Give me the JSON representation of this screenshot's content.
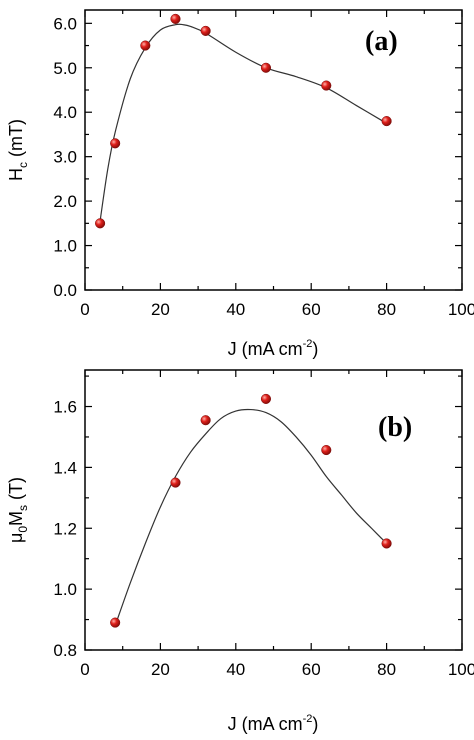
{
  "chart_data": [
    {
      "type": "scatter",
      "panel_label": "(a)",
      "xlabel": "J (mA cm",
      "xlabel_sup": "-2",
      "xlabel_close": ")",
      "ylabel": "H",
      "ylabel_sub": "c",
      "ylabel_rest": " (mT)",
      "xlim": [
        0,
        100
      ],
      "ylim": [
        0.0,
        6.3
      ],
      "xticks": [
        "0",
        "20",
        "40",
        "60",
        "80",
        "100"
      ],
      "yticks": [
        "0.0",
        "1.0",
        "2.0",
        "3.0",
        "4.0",
        "5.0",
        "6.0"
      ],
      "x": [
        4,
        8,
        16,
        24,
        32,
        48,
        64,
        80
      ],
      "y": [
        1.5,
        3.3,
        5.5,
        6.1,
        5.83,
        5.0,
        4.6,
        3.8
      ],
      "fit_curve": {
        "x": [
          4,
          6,
          8,
          12,
          16,
          20,
          24,
          26,
          28,
          32,
          40,
          48,
          56,
          64,
          72,
          80
        ],
        "y": [
          1.55,
          2.7,
          3.55,
          4.75,
          5.45,
          5.85,
          5.97,
          5.97,
          5.93,
          5.78,
          5.35,
          5.0,
          4.8,
          4.55,
          4.15,
          3.75
        ]
      },
      "colors": {
        "marker": "#e0201b",
        "curve": "#333333"
      }
    },
    {
      "type": "scatter",
      "panel_label": "(b)",
      "xlabel": "J (mA cm",
      "xlabel_sup": "-2",
      "xlabel_close": ")",
      "ylabel": "μ",
      "ylabel_sub": "0",
      "ylabel_mid": "M",
      "ylabel_sub2": "s",
      "ylabel_rest": " (T)",
      "xlim": [
        0,
        100
      ],
      "ylim": [
        0.8,
        1.72
      ],
      "xticks": [
        "0",
        "20",
        "40",
        "60",
        "80",
        "100"
      ],
      "yticks": [
        "0.8",
        "1.0",
        "1.2",
        "1.4",
        "1.6"
      ],
      "x": [
        8,
        24,
        32,
        48,
        64,
        80
      ],
      "y": [
        0.89,
        1.35,
        1.555,
        1.625,
        1.457,
        1.15
      ],
      "fit_curve": {
        "x": [
          8,
          12,
          16,
          20,
          24,
          28,
          32,
          36,
          40,
          44,
          48,
          52,
          56,
          60,
          64,
          68,
          72,
          76,
          80
        ],
        "y": [
          0.88,
          1.02,
          1.15,
          1.27,
          1.37,
          1.45,
          1.51,
          1.56,
          1.585,
          1.59,
          1.58,
          1.55,
          1.5,
          1.44,
          1.37,
          1.31,
          1.25,
          1.2,
          1.15
        ]
      },
      "colors": {
        "marker": "#e0201b",
        "curve": "#333333"
      }
    }
  ]
}
